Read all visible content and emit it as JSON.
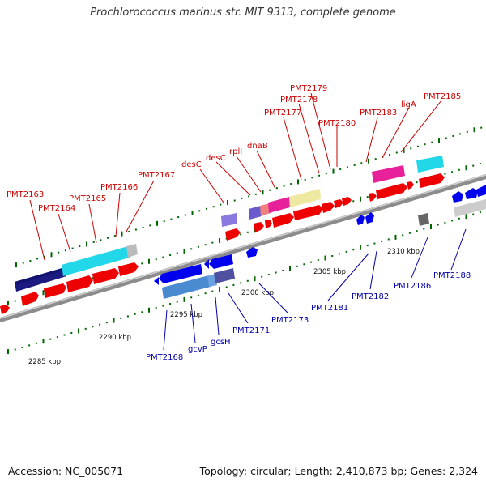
{
  "title": "Prochlorococcus marinus str. MIT 9313, complete genome",
  "accession": "Accession: NC_005071",
  "stats": "Topology: circular; Length: 2,410,873 bp; Genes: 2,324",
  "colors": {
    "backbone": "#888888",
    "forward_gene": "#ee0000",
    "reverse_gene": "#0000ee",
    "label_forward": "#cc0000",
    "label_reverse": "#0000aa",
    "tick": "#006600"
  },
  "scale_labels": [
    "2285 kbp",
    "2290 kbp",
    "2295 kbp",
    "2300 kbp",
    "2305 kbp",
    "2310 kbp"
  ],
  "top_labels": [
    "PMT2163",
    "PMT2164",
    "PMT2165",
    "PMT2166",
    "PMT2167",
    "desC",
    "desC",
    "rplI",
    "dnaB",
    "PMT2177",
    "PMT2178",
    "PMT2179",
    "PMT2180",
    "PMT2183",
    "ligA",
    "PMT2185"
  ],
  "bottom_labels": [
    "PMT2168",
    "gcvP",
    "gcsH",
    "PMT2171",
    "PMT2173",
    "PMT2181",
    "PMT2182",
    "PMT2186",
    "PMT2188"
  ]
}
